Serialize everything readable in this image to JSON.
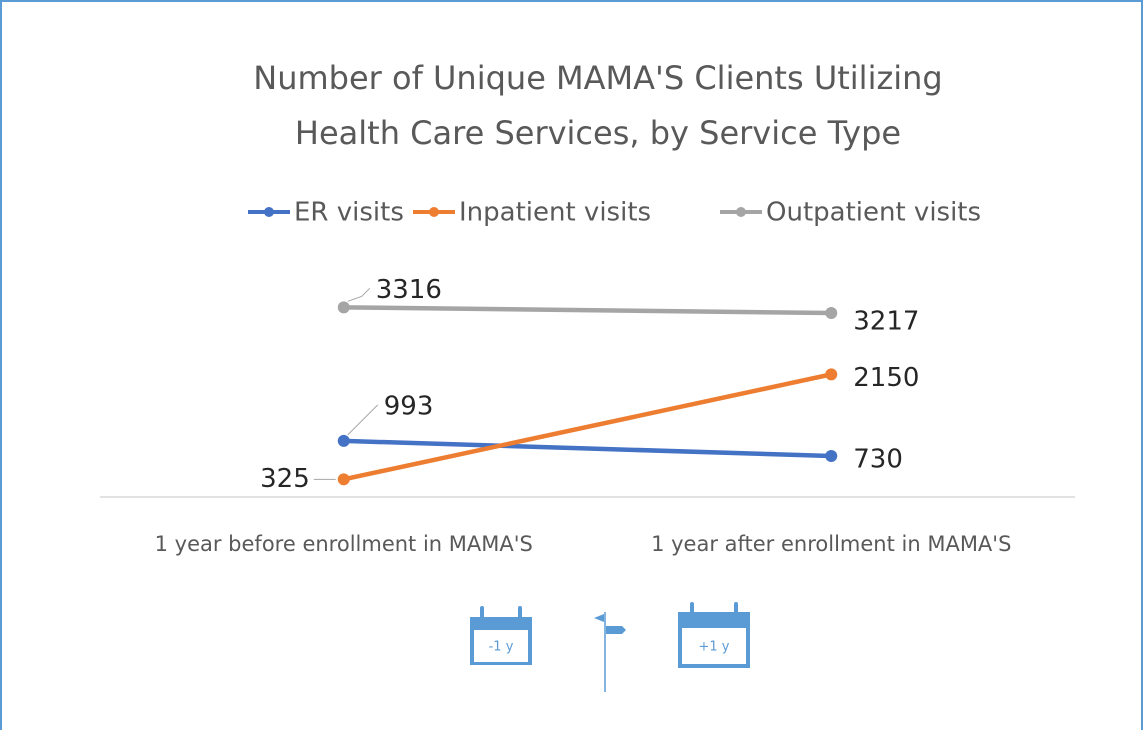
{
  "chart_data": {
    "type": "line",
    "title": [
      "Number of Unique MAMA'S Clients Utilizing",
      "Health Care Services, by Service Type"
    ],
    "categories": [
      "1 year before enrollment in MAMA'S",
      "1 year after enrollment in MAMA'S"
    ],
    "series": [
      {
        "name": "ER visits",
        "color": "#4472c4",
        "values": [
          993,
          730
        ]
      },
      {
        "name": "Inpatient visits",
        "color": "#ed7d31",
        "values": [
          325,
          2150
        ]
      },
      {
        "name": "Outpatient visits",
        "color": "#a5a5a5",
        "values": [
          3316,
          3217
        ]
      }
    ],
    "ylim": [
      0,
      4000
    ],
    "legend": "top",
    "icon_labels": [
      "-1 y",
      "+1 y"
    ]
  }
}
